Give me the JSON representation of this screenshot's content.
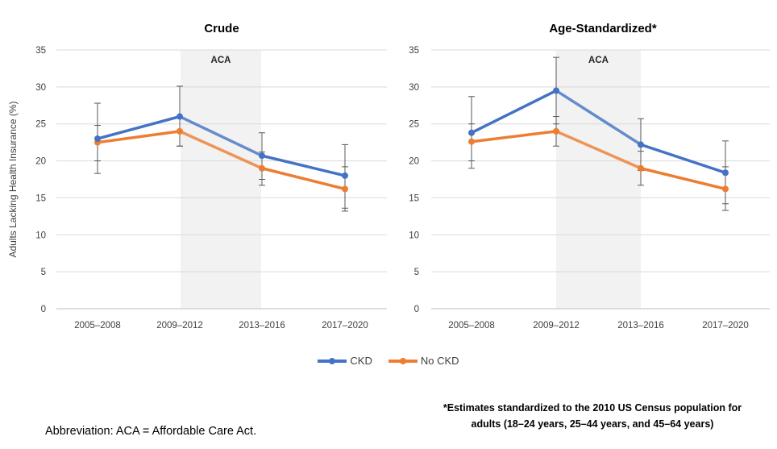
{
  "chart_data": [
    {
      "type": "line",
      "title": "Crude",
      "ylabel": "Adults Lacking Health Insurance (%)",
      "ylim": [
        0,
        35
      ],
      "yticks": [
        0,
        5,
        10,
        15,
        20,
        25,
        30,
        35
      ],
      "categories": [
        "2005–2008",
        "2009–2012",
        "2013–2016",
        "2017–2020"
      ],
      "shaded_region": {
        "label": "ACA",
        "from": "2009–2012",
        "to": "2013–2016"
      },
      "grid": true,
      "series": [
        {
          "name": "CKD",
          "color": "#4472C4",
          "values": [
            23.0,
            26.0,
            20.7,
            18.0
          ],
          "err_low": [
            18.3,
            22.0,
            17.5,
            13.6
          ],
          "err_high": [
            27.8,
            30.1,
            23.8,
            22.2
          ]
        },
        {
          "name": "No CKD",
          "color": "#ED7D31",
          "values": [
            22.5,
            24.0,
            19.0,
            16.2
          ],
          "err_low": [
            20.0,
            22.0,
            16.7,
            13.2
          ],
          "err_high": [
            24.8,
            25.8,
            21.2,
            19.2
          ]
        }
      ]
    },
    {
      "type": "line",
      "title": "Age-Standardized*",
      "ylim": [
        0,
        35
      ],
      "yticks": [
        0,
        5,
        10,
        15,
        20,
        25,
        30,
        35
      ],
      "categories": [
        "2005–2008",
        "2009–2012",
        "2013–2016",
        "2017–2020"
      ],
      "shaded_region": {
        "label": "ACA",
        "from": "2009–2012",
        "to": "2013–2016"
      },
      "grid": true,
      "series": [
        {
          "name": "CKD",
          "color": "#4472C4",
          "values": [
            23.8,
            29.5,
            22.2,
            18.4
          ],
          "err_low": [
            19.0,
            25.0,
            18.7,
            14.2
          ],
          "err_high": [
            28.7,
            34.0,
            25.7,
            22.7
          ]
        },
        {
          "name": "No CKD",
          "color": "#ED7D31",
          "values": [
            22.6,
            24.0,
            19.0,
            16.2
          ],
          "err_low": [
            20.0,
            22.0,
            16.7,
            13.3
          ],
          "err_high": [
            25.0,
            26.0,
            21.3,
            19.2
          ]
        }
      ]
    }
  ],
  "legend": {
    "placement": "bottom-center",
    "items": [
      {
        "label": "CKD",
        "color": "#4472C4"
      },
      {
        "label": "No CKD",
        "color": "#ED7D31"
      }
    ]
  },
  "footnote": {
    "line1": "*Estimates standardized to the 2010 US Census population for",
    "line2": "adults (18–24 years, 25–44 years, and 45–64 years)"
  },
  "abbreviation": "Abbreviation: ACA = Affordable Care Act."
}
